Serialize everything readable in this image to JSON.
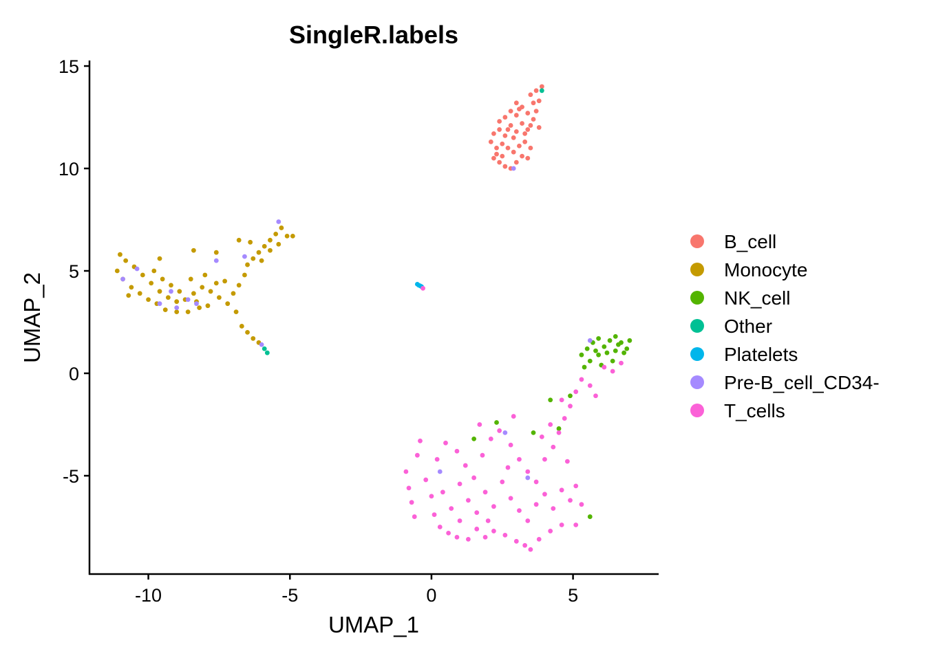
{
  "chart_data": {
    "type": "scatter",
    "title": "SingleR.labels",
    "xlabel": "UMAP_1",
    "ylabel": "UMAP_2",
    "xlim": [
      -12.08,
      8.0
    ],
    "ylim": [
      -9.8,
      15.27
    ],
    "xticks": [
      -10,
      -5,
      0,
      5
    ],
    "yticks": [
      -5,
      0,
      5,
      10,
      15
    ],
    "xtick_labels": [
      "-10",
      "-5",
      "0",
      "5"
    ],
    "ytick_labels": [
      "-5",
      "0",
      "5",
      "10",
      "15"
    ],
    "grid": false,
    "legend_position": "right",
    "series": [
      {
        "name": "B_cell",
        "color": "#F8766D",
        "points": [
          [
            2.2,
            10.5
          ],
          [
            2.4,
            10.3
          ],
          [
            2.6,
            10.1
          ],
          [
            2.8,
            10.0
          ],
          [
            3.0,
            10.3
          ],
          [
            3.2,
            10.6
          ],
          [
            2.3,
            11.0
          ],
          [
            2.5,
            11.2
          ],
          [
            2.7,
            11.0
          ],
          [
            2.9,
            10.8
          ],
          [
            3.1,
            11.1
          ],
          [
            3.3,
            11.3
          ],
          [
            3.5,
            11.0
          ],
          [
            2.2,
            11.7
          ],
          [
            2.4,
            11.9
          ],
          [
            2.6,
            11.6
          ],
          [
            2.8,
            12.1
          ],
          [
            3.0,
            11.8
          ],
          [
            3.2,
            12.2
          ],
          [
            3.4,
            11.9
          ],
          [
            3.6,
            12.4
          ],
          [
            3.8,
            12.0
          ],
          [
            2.6,
            12.5
          ],
          [
            2.8,
            12.8
          ],
          [
            3.0,
            12.6
          ],
          [
            3.2,
            13.0
          ],
          [
            3.4,
            12.7
          ],
          [
            3.6,
            13.2
          ],
          [
            3.5,
            13.6
          ],
          [
            3.7,
            13.8
          ],
          [
            3.9,
            14.0
          ],
          [
            3.8,
            13.3
          ],
          [
            2.4,
            12.3
          ],
          [
            3.0,
            13.2
          ],
          [
            3.3,
            11.7
          ],
          [
            2.5,
            10.6
          ],
          [
            2.9,
            11.5
          ],
          [
            3.7,
            12.8
          ],
          [
            2.1,
            11.3
          ],
          [
            3.4,
            10.5
          ],
          [
            3.1,
            12.9
          ],
          [
            2.7,
            11.9
          ],
          [
            3.5,
            12.1
          ],
          [
            2.3,
            10.7
          ]
        ]
      },
      {
        "name": "Monocyte",
        "color": "#C49A00",
        "points": [
          [
            -11.0,
            5.8
          ],
          [
            -10.8,
            5.5
          ],
          [
            -11.1,
            5.0
          ],
          [
            -10.9,
            4.6
          ],
          [
            -10.6,
            4.2
          ],
          [
            -10.3,
            3.9
          ],
          [
            -10.0,
            3.6
          ],
          [
            -9.7,
            3.4
          ],
          [
            -9.4,
            3.1
          ],
          [
            -9.0,
            3.0
          ],
          [
            -8.6,
            3.0
          ],
          [
            -8.2,
            3.2
          ],
          [
            -10.5,
            5.2
          ],
          [
            -10.2,
            4.8
          ],
          [
            -9.9,
            4.4
          ],
          [
            -9.6,
            4.0
          ],
          [
            -9.3,
            3.7
          ],
          [
            -9.0,
            3.5
          ],
          [
            -8.7,
            3.6
          ],
          [
            -8.4,
            3.9
          ],
          [
            -8.1,
            4.2
          ],
          [
            -7.8,
            4.0
          ],
          [
            -7.5,
            3.7
          ],
          [
            -7.2,
            3.4
          ],
          [
            -7.0,
            3.9
          ],
          [
            -6.8,
            4.3
          ],
          [
            -6.6,
            4.8
          ],
          [
            -6.5,
            5.3
          ],
          [
            -6.3,
            5.6
          ],
          [
            -6.1,
            5.9
          ],
          [
            -5.9,
            6.2
          ],
          [
            -5.7,
            6.5
          ],
          [
            -5.5,
            6.8
          ],
          [
            -5.3,
            7.1
          ],
          [
            -5.1,
            6.7
          ],
          [
            -5.4,
            6.3
          ],
          [
            -5.7,
            6.0
          ],
          [
            -6.0,
            5.5
          ],
          [
            -6.4,
            6.4
          ],
          [
            -6.8,
            6.5
          ],
          [
            -9.8,
            5.0
          ],
          [
            -9.5,
            4.6
          ],
          [
            -9.2,
            4.3
          ],
          [
            -8.9,
            4.0
          ],
          [
            -8.5,
            4.6
          ],
          [
            -8.0,
            4.8
          ],
          [
            -7.6,
            4.4
          ],
          [
            -7.3,
            4.5
          ],
          [
            -10.7,
            3.8
          ],
          [
            -8.3,
            3.5
          ],
          [
            -7.9,
            3.3
          ],
          [
            -6.9,
            3.0
          ],
          [
            -6.7,
            2.3
          ],
          [
            -6.5,
            2.0
          ],
          [
            -6.3,
            1.7
          ],
          [
            -6.1,
            1.5
          ],
          [
            -8.4,
            6.0
          ],
          [
            -7.6,
            5.9
          ],
          [
            -9.6,
            5.6
          ],
          [
            -4.9,
            6.7
          ]
        ]
      },
      {
        "name": "NK_cell",
        "color": "#53B400",
        "points": [
          [
            5.3,
            0.9
          ],
          [
            5.5,
            1.2
          ],
          [
            5.7,
            1.5
          ],
          [
            5.9,
            1.7
          ],
          [
            6.1,
            1.3
          ],
          [
            6.3,
            1.6
          ],
          [
            6.5,
            1.8
          ],
          [
            6.7,
            1.5
          ],
          [
            6.9,
            1.2
          ],
          [
            7.0,
            1.6
          ],
          [
            5.6,
            0.6
          ],
          [
            5.9,
            0.9
          ],
          [
            6.2,
            1.0
          ],
          [
            6.5,
            1.1
          ],
          [
            6.8,
            1.0
          ],
          [
            6.0,
            0.4
          ],
          [
            6.4,
            0.6
          ],
          [
            5.4,
            0.3
          ],
          [
            6.6,
            1.4
          ],
          [
            5.8,
            1.1
          ],
          [
            4.9,
            -1.1
          ],
          [
            4.2,
            -1.3
          ],
          [
            2.3,
            -2.4
          ],
          [
            1.5,
            -3.2
          ],
          [
            3.6,
            -2.9
          ],
          [
            5.6,
            -7.0
          ],
          [
            4.5,
            -2.7
          ]
        ]
      },
      {
        "name": "Other",
        "color": "#00C094",
        "points": [
          [
            3.9,
            13.8
          ],
          [
            -5.9,
            1.2
          ],
          [
            -5.8,
            1.0
          ]
        ]
      },
      {
        "name": "Platelets",
        "color": "#00B6EB",
        "points": [
          [
            -0.5,
            4.35
          ],
          [
            -0.45,
            4.3
          ],
          [
            -0.4,
            4.27
          ],
          [
            -0.35,
            4.23
          ]
        ]
      },
      {
        "name": "Pre-B_cell_CD34-",
        "color": "#A58AFF",
        "points": [
          [
            2.9,
            10.0
          ],
          [
            -5.4,
            7.4
          ],
          [
            -10.9,
            4.6
          ],
          [
            -10.4,
            5.1
          ],
          [
            -9.6,
            3.4
          ],
          [
            -9.2,
            4.0
          ],
          [
            -8.6,
            3.6
          ],
          [
            -8.3,
            3.4
          ],
          [
            -7.6,
            5.5
          ],
          [
            -9.0,
            3.2
          ],
          [
            -6.6,
            5.7
          ],
          [
            -6.0,
            1.4
          ],
          [
            2.6,
            -2.9
          ],
          [
            3.4,
            -5.1
          ],
          [
            0.3,
            -4.8
          ],
          [
            5.6,
            1.6
          ]
        ]
      },
      {
        "name": "T_cells",
        "color": "#FB61D7",
        "points": [
          [
            -0.3,
            4.15
          ],
          [
            -0.9,
            -4.8
          ],
          [
            -0.8,
            -5.6
          ],
          [
            -0.7,
            -6.3
          ],
          [
            -0.5,
            -4.0
          ],
          [
            -0.4,
            -3.3
          ],
          [
            -0.2,
            -5.2
          ],
          [
            0.0,
            -6.0
          ],
          [
            0.1,
            -6.9
          ],
          [
            0.3,
            -7.5
          ],
          [
            0.6,
            -7.8
          ],
          [
            0.9,
            -8.0
          ],
          [
            1.3,
            -8.1
          ],
          [
            1.6,
            -7.6
          ],
          [
            1.9,
            -8.0
          ],
          [
            2.2,
            -7.7
          ],
          [
            2.6,
            -7.9
          ],
          [
            3.0,
            -8.2
          ],
          [
            3.3,
            -8.4
          ],
          [
            3.5,
            -8.6
          ],
          [
            3.8,
            -8.1
          ],
          [
            4.2,
            -7.7
          ],
          [
            4.6,
            -7.4
          ],
          [
            5.1,
            -7.4
          ],
          [
            5.3,
            -6.4
          ],
          [
            5.1,
            -5.5
          ],
          [
            0.2,
            -4.2
          ],
          [
            0.5,
            -3.4
          ],
          [
            0.9,
            -3.8
          ],
          [
            1.2,
            -4.5
          ],
          [
            1.5,
            -5.1
          ],
          [
            1.8,
            -4.0
          ],
          [
            2.1,
            -3.2
          ],
          [
            2.4,
            -2.8
          ],
          [
            2.8,
            -3.5
          ],
          [
            3.1,
            -4.2
          ],
          [
            3.4,
            -4.8
          ],
          [
            3.7,
            -5.3
          ],
          [
            4.0,
            -4.2
          ],
          [
            4.3,
            -3.6
          ],
          [
            4.5,
            -2.9
          ],
          [
            4.7,
            -2.2
          ],
          [
            4.9,
            -1.6
          ],
          [
            5.1,
            -0.9
          ],
          [
            5.3,
            -0.3
          ],
          [
            5.6,
            -0.6
          ],
          [
            5.8,
            -1.1
          ],
          [
            6.1,
            0.3
          ],
          [
            6.4,
            0.1
          ],
          [
            6.7,
            0.5
          ],
          [
            4.6,
            -1.3
          ],
          [
            4.2,
            -2.5
          ],
          [
            0.4,
            -5.8
          ],
          [
            0.7,
            -6.6
          ],
          [
            1.0,
            -5.4
          ],
          [
            1.3,
            -6.2
          ],
          [
            1.6,
            -6.8
          ],
          [
            1.9,
            -5.8
          ],
          [
            2.2,
            -6.5
          ],
          [
            2.5,
            -5.3
          ],
          [
            2.8,
            -6.1
          ],
          [
            3.1,
            -6.7
          ],
          [
            3.4,
            -7.2
          ],
          [
            3.7,
            -6.4
          ],
          [
            4.0,
            -5.9
          ],
          [
            4.3,
            -6.6
          ],
          [
            4.6,
            -5.7
          ],
          [
            4.9,
            -6.2
          ],
          [
            2.0,
            -7.2
          ],
          [
            1.0,
            -7.2
          ],
          [
            -0.6,
            -7.0
          ],
          [
            2.7,
            -4.6
          ],
          [
            3.9,
            -3.1
          ],
          [
            4.8,
            -4.3
          ],
          [
            1.7,
            -2.5
          ],
          [
            2.9,
            -2.1
          ]
        ]
      }
    ]
  }
}
